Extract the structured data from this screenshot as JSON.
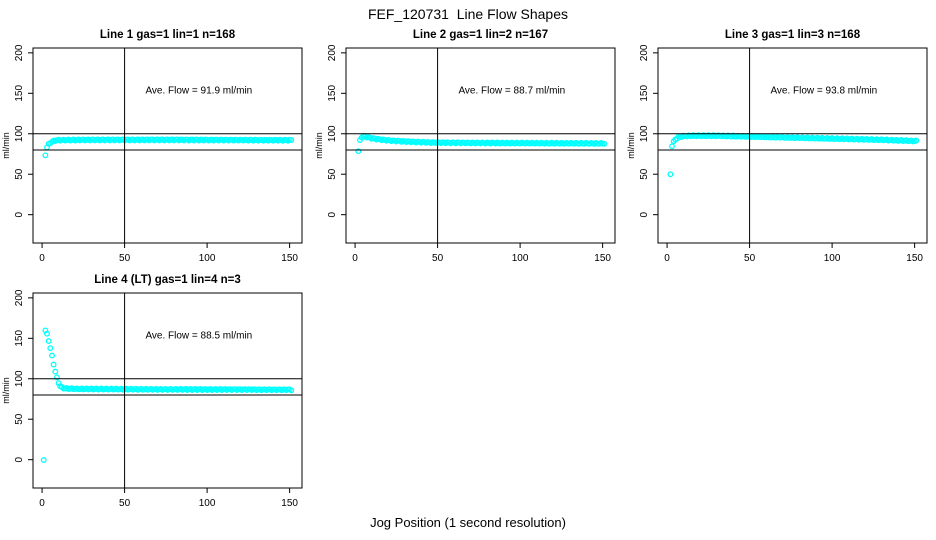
{
  "figure": {
    "title": "FEF_120731  Line Flow Shapes",
    "xlabel": "Jog Position (1 second resolution)"
  },
  "chart_data": {
    "type": "scatter",
    "marker": "open-circle",
    "marker_color": "#00FFFF",
    "axis_color": "#000000",
    "ylabel": "ml/min",
    "xlabel": "Jog Position (1 second resolution)",
    "xticks": [
      0,
      50,
      100,
      150
    ],
    "yticks": [
      0,
      50,
      100,
      150,
      200
    ],
    "xlim": [
      -5.5,
      157.5
    ],
    "ylim": [
      -35,
      206
    ],
    "reference_lines": {
      "horizontal": [
        80,
        100
      ],
      "vertical": [
        50
      ]
    },
    "annotation_position": {
      "x": 95,
      "y": 150
    },
    "marker_step": 1,
    "jitter_amplitude": 0.7,
    "panels": [
      {
        "title": "Line 1 gas=1 lin=1 n=168",
        "annotation": "Ave. Flow =  91.9  ml/min",
        "ave_flow_ml_min": 91.9,
        "n": 168,
        "profile": [
          [
            2,
            74
          ],
          [
            3,
            83
          ],
          [
            4,
            87
          ],
          [
            5,
            89
          ],
          [
            6,
            90
          ],
          [
            7,
            91
          ],
          [
            9,
            92
          ],
          [
            25,
            92.5
          ],
          [
            80,
            92.5
          ],
          [
            151,
            92
          ]
        ]
      },
      {
        "title": "Line 2 gas=1 lin=2 n=167",
        "annotation": "Ave. Flow =  88.7  ml/min",
        "ave_flow_ml_min": 88.7,
        "n": 167,
        "profile": [
          [
            2,
            78
          ],
          [
            3,
            92
          ],
          [
            4,
            96
          ],
          [
            5,
            97
          ],
          [
            7,
            96
          ],
          [
            10,
            94.5
          ],
          [
            15,
            93
          ],
          [
            22,
            91.5
          ],
          [
            35,
            90
          ],
          [
            50,
            89
          ],
          [
            90,
            88.5
          ],
          [
            151,
            88
          ]
        ]
      },
      {
        "title": "Line 3 gas=1 lin=3 n=168",
        "annotation": "Ave. Flow =  93.8  ml/min",
        "ave_flow_ml_min": 93.8,
        "n": 168,
        "profile": [
          [
            2,
            50
          ],
          [
            3,
            85
          ],
          [
            4,
            90
          ],
          [
            5,
            93
          ],
          [
            7,
            96
          ],
          [
            10,
            97
          ],
          [
            15,
            97.5
          ],
          [
            30,
            97.5
          ],
          [
            50,
            96.5
          ],
          [
            70,
            95.5
          ],
          [
            90,
            94.5
          ],
          [
            110,
            93.5
          ],
          [
            130,
            92.5
          ],
          [
            151,
            91
          ]
        ]
      },
      {
        "title": "Line 4 (LT) gas=1 lin=4 n=3",
        "annotation": "Ave. Flow =  88.5  ml/min",
        "ave_flow_ml_min": 88.5,
        "n": 3,
        "profile": [
          [
            1,
            0
          ],
          [
            2,
            160
          ],
          [
            3,
            155
          ],
          [
            4,
            147
          ],
          [
            5,
            138
          ],
          [
            6,
            128
          ],
          [
            7,
            118
          ],
          [
            8,
            109
          ],
          [
            9,
            101
          ],
          [
            10,
            95
          ],
          [
            11,
            91
          ],
          [
            12,
            89
          ],
          [
            14,
            88
          ],
          [
            20,
            87.5
          ],
          [
            60,
            87
          ],
          [
            151,
            86.5
          ]
        ]
      }
    ]
  }
}
